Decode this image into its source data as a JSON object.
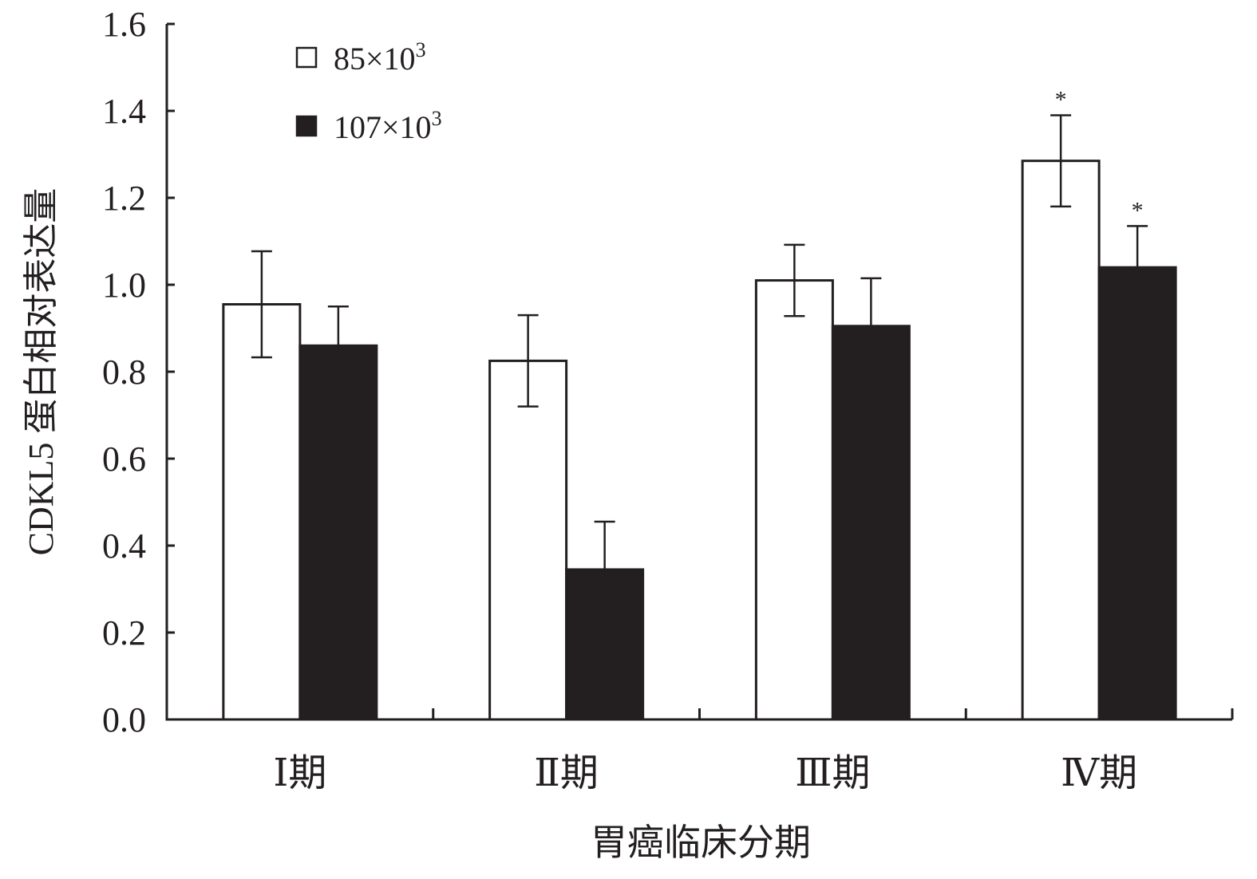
{
  "chart_data": {
    "type": "bar",
    "title": "",
    "xlabel": "胃癌临床分期",
    "ylabel": "CDKL5 蛋白相对表达量",
    "categories": [
      "Ⅰ期",
      "Ⅱ期",
      "Ⅲ期",
      "Ⅳ期"
    ],
    "ylim": [
      0,
      1.6
    ],
    "yticks": [
      "0.0",
      "0.2",
      "0.4",
      "0.6",
      "0.8",
      "1.0",
      "1.2",
      "1.4",
      "1.6"
    ],
    "grid": false,
    "legend_position": "top-left",
    "series": [
      {
        "name_base": "85×10",
        "name_sup": "3",
        "fill": "#ffffff",
        "values": [
          0.955,
          0.825,
          1.01,
          1.285
        ],
        "error": [
          0.122,
          0.105,
          0.082,
          0.105
        ],
        "significance": [
          "",
          "",
          "",
          "*"
        ]
      },
      {
        "name_base": "107×10",
        "name_sup": "3",
        "fill": "#231f20",
        "values": [
          0.86,
          0.345,
          0.905,
          1.04
        ],
        "error": [
          0.09,
          0.11,
          0.11,
          0.095
        ],
        "significance": [
          "",
          "",
          "",
          "*"
        ]
      }
    ]
  }
}
